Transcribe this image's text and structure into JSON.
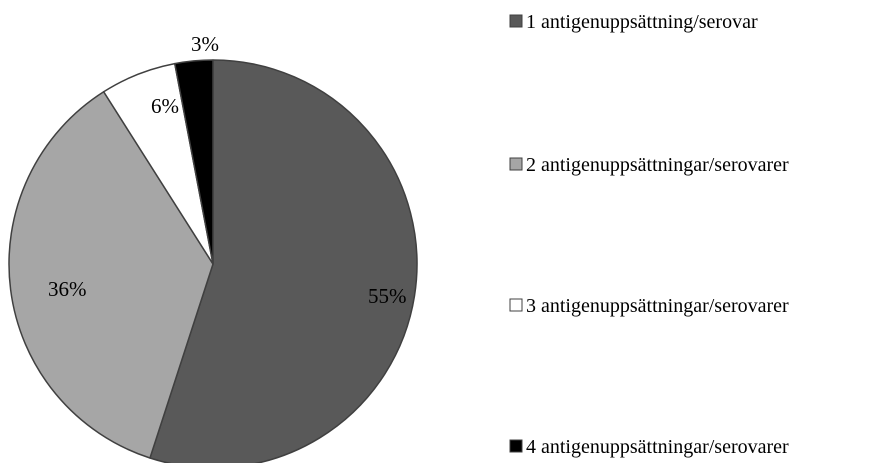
{
  "chart_data": {
    "type": "pie",
    "title": "",
    "categories": [
      "1 antigenuppsättning/serovar",
      "2 antigenuppsättningar/serovarer",
      "3 antigenuppsättningar/serovarer",
      "4 antigenuppsättningar/serovarer"
    ],
    "values": [
      55,
      36,
      6,
      3
    ],
    "data_labels": [
      "55%",
      "36%",
      "6%",
      "3%"
    ],
    "colors": [
      "#595959",
      "#a6a6a6",
      "#ffffff",
      "#000000"
    ],
    "edge_color": "#404040",
    "legend_placement": "right",
    "start_angle": "12 o'clock, clockwise"
  }
}
